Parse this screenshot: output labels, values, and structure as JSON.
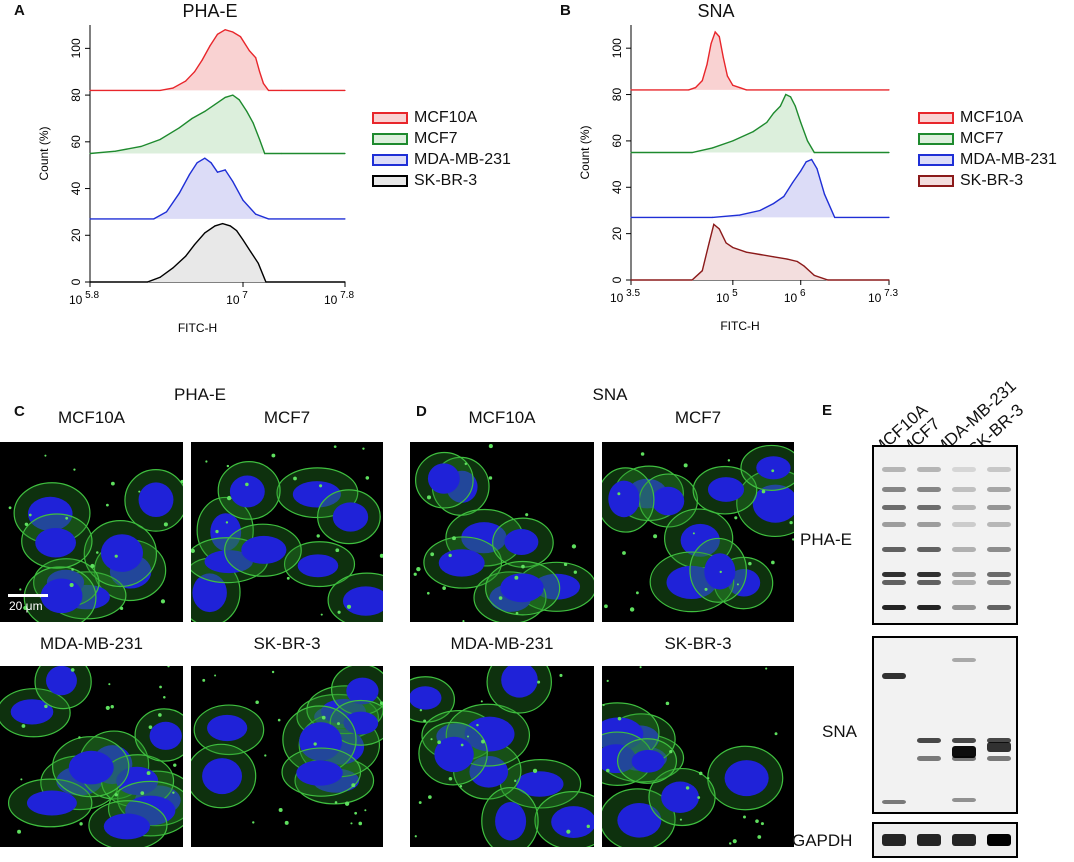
{
  "panels": {
    "A": {
      "letter": "A",
      "title": "PHA-E"
    },
    "B": {
      "letter": "B",
      "title": "SNA"
    },
    "C": {
      "letter": "C",
      "title": "PHA-E"
    },
    "D": {
      "letter": "D",
      "title": "SNA"
    },
    "E": {
      "letter": "E"
    }
  },
  "micrographs": {
    "labels": [
      "MCF10A",
      "MCF7",
      "MDA-MB-231",
      "SK-BR-3"
    ],
    "scale_bar": "20 μm"
  },
  "blot": {
    "lanes": [
      "MCF10A",
      "MCF7",
      "MDA-MB-231",
      "SK-BR-3"
    ],
    "rows": [
      "PHA-E",
      "SNA",
      "GAPDH"
    ]
  },
  "chart_data": [
    {
      "type": "area",
      "panel": "A",
      "title": "PHA-E",
      "xlabel": "FITC-H",
      "ylabel": "Count  (%)",
      "x_scale": "log",
      "xlim": [
        5.8,
        7.8
      ],
      "x_ticks": [
        {
          "base": "10",
          "exp": "5.8"
        },
        {
          "base": "10",
          "exp": "7"
        },
        {
          "base": "10",
          "exp": "7.8"
        }
      ],
      "ylim": [
        0,
        110
      ],
      "y_ticks": [
        0,
        20,
        40,
        60,
        80,
        100
      ],
      "legend_position": "right",
      "series": [
        {
          "name": "MCF10A",
          "color": "#e8262b",
          "fill": "#f9d2d2",
          "offset": 82,
          "log10_x": [
            5.8,
            6.35,
            6.45,
            6.55,
            6.62,
            6.68,
            6.74,
            6.8,
            6.86,
            6.92,
            6.98,
            7.05,
            7.1,
            7.13,
            7.16,
            7.2,
            7.3,
            7.8
          ],
          "y": [
            0,
            0,
            1,
            4,
            8,
            13,
            19,
            24,
            26,
            25,
            23,
            17,
            14,
            8,
            3,
            0,
            0,
            0
          ]
        },
        {
          "name": "MCF7",
          "color": "#1e8a2e",
          "fill": "#dcefdc",
          "offset": 55,
          "log10_x": [
            5.8,
            6.0,
            6.2,
            6.35,
            6.5,
            6.6,
            6.7,
            6.78,
            6.86,
            6.92,
            6.97,
            7.03,
            7.08,
            7.13,
            7.17,
            7.3,
            7.8
          ],
          "y": [
            0,
            1,
            3,
            6,
            11,
            15,
            18,
            21,
            24,
            25,
            23,
            18,
            13,
            6,
            0,
            0,
            0
          ]
        },
        {
          "name": "MDA-MB-231",
          "color": "#1f2fd6",
          "fill": "#dcdcf7",
          "offset": 27,
          "log10_x": [
            5.8,
            6.3,
            6.4,
            6.5,
            6.58,
            6.64,
            6.7,
            6.75,
            6.8,
            6.86,
            6.92,
            7.0,
            7.1,
            7.2,
            7.8
          ],
          "y": [
            0,
            0,
            3,
            11,
            19,
            24,
            26,
            24,
            20,
            21,
            16,
            8,
            2,
            0,
            0
          ]
        },
        {
          "name": "SK-BR-3",
          "color": "#000000",
          "fill": "#e8e8e8",
          "offset": 0,
          "log10_x": [
            5.8,
            6.25,
            6.35,
            6.45,
            6.55,
            6.62,
            6.7,
            6.78,
            6.84,
            6.9,
            6.95,
            7.0,
            7.06,
            7.12,
            7.18,
            7.8
          ],
          "y": [
            0,
            0,
            2,
            6,
            11,
            16,
            21,
            24,
            25,
            24,
            22,
            18,
            13,
            8,
            0,
            0
          ]
        }
      ]
    },
    {
      "type": "area",
      "panel": "B",
      "title": "SNA",
      "xlabel": "FITC-H",
      "ylabel": "Count  (%)",
      "x_scale": "log",
      "xlim": [
        3.5,
        7.3
      ],
      "x_ticks": [
        {
          "base": "10",
          "exp": "3.5"
        },
        {
          "base": "10",
          "exp": "5"
        },
        {
          "base": "10",
          "exp": "6"
        },
        {
          "base": "10",
          "exp": "7.3"
        }
      ],
      "ylim": [
        0,
        110
      ],
      "y_ticks": [
        0,
        20,
        40,
        60,
        80,
        100
      ],
      "legend_position": "right",
      "series": [
        {
          "name": "MCF10A",
          "color": "#e8262b",
          "fill": "#f9d2d2",
          "offset": 82,
          "log10_x": [
            3.5,
            4.35,
            4.45,
            4.55,
            4.62,
            4.68,
            4.74,
            4.8,
            4.86,
            4.92,
            5.0,
            5.1,
            5.2,
            7.3
          ],
          "y": [
            0,
            0,
            1,
            4,
            11,
            20,
            25,
            23,
            14,
            6,
            2,
            1,
            0,
            0
          ]
        },
        {
          "name": "MCF7",
          "color": "#1e8a2e",
          "fill": "#dcefdc",
          "offset": 55,
          "log10_x": [
            3.5,
            4.4,
            4.7,
            5.0,
            5.3,
            5.5,
            5.6,
            5.7,
            5.78,
            5.85,
            5.92,
            6.0,
            6.1,
            6.2,
            7.3
          ],
          "y": [
            0,
            0,
            2,
            5,
            9,
            13,
            17,
            20,
            25,
            24,
            20,
            13,
            5,
            0,
            0
          ]
        },
        {
          "name": "MDA-MB-231",
          "color": "#1f2fd6",
          "fill": "#dcdcf7",
          "offset": 27,
          "log10_x": [
            3.5,
            4.7,
            5.1,
            5.4,
            5.6,
            5.75,
            5.88,
            6.0,
            6.08,
            6.16,
            6.24,
            6.35,
            6.5,
            7.3
          ],
          "y": [
            0,
            0,
            1,
            3,
            6,
            9,
            15,
            20,
            24,
            25,
            21,
            10,
            0,
            0
          ]
        },
        {
          "name": "SK-BR-3",
          "color": "#8b1a1a",
          "fill": "#f3dede",
          "offset": 0,
          "log10_x": [
            3.5,
            4.4,
            4.55,
            4.65,
            4.72,
            4.8,
            4.9,
            5.0,
            5.2,
            5.4,
            5.6,
            5.8,
            5.95,
            6.05,
            6.2,
            6.4,
            7.3
          ],
          "y": [
            0,
            0,
            4,
            16,
            24,
            22,
            16,
            14,
            12,
            11,
            10,
            9,
            8,
            6,
            2,
            0,
            0
          ]
        }
      ]
    }
  ]
}
